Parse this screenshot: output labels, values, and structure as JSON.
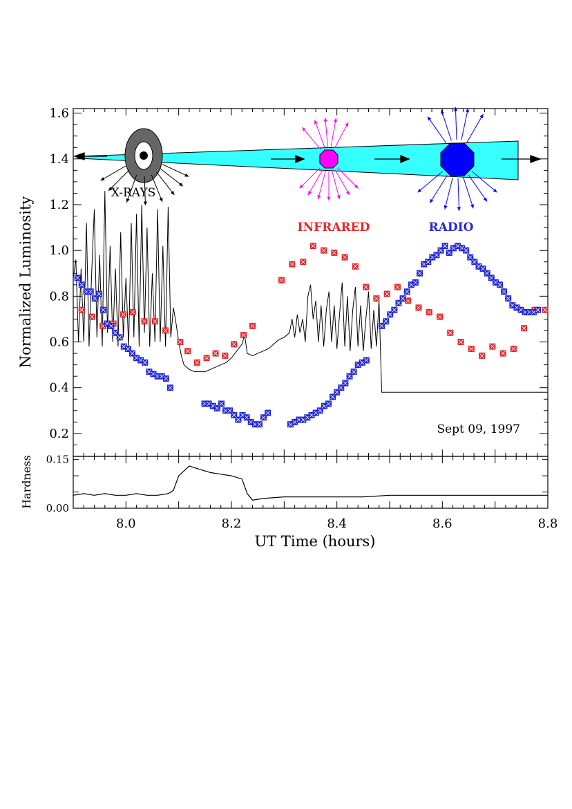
{
  "chart_data": [
    {
      "type": "scatter",
      "xlabel": "UT Time (hours)",
      "ylabel": "Normalized Luminosity",
      "xlim": [
        7.9,
        8.8
      ],
      "ylim": [
        0.1,
        1.62
      ],
      "x_ticks": [
        "8.0",
        "8.2",
        "8.4",
        "8.6",
        "8.8"
      ],
      "y_ticks": [
        "0.2",
        "0.4",
        "0.6",
        "0.8",
        "1.0",
        "1.2",
        "1.4",
        "1.6"
      ],
      "annotation_date": "Sept 09, 1997",
      "labels": {
        "xrays": "X-RAYS",
        "infrared": "INFRARED",
        "radio": "RADIO"
      },
      "colors": {
        "xray": "#000000",
        "infrared": "#e8262a",
        "radio": "#2326d9",
        "jet": "#36ffff",
        "ir_blob": "#ff00ff",
        "radio_blob": "#0000ff",
        "disk": "#666666"
      },
      "series": [
        {
          "marker": "line",
          "points": [
            [
              7.9,
              0.88
            ],
            [
              7.905,
              0.96
            ],
            [
              7.91,
              0.6
            ],
            [
              7.915,
              0.92
            ],
            [
              7.92,
              0.6
            ],
            [
              7.925,
              1.12
            ],
            [
              7.93,
              0.58
            ],
            [
              7.935,
              0.9
            ],
            [
              7.94,
              1.18
            ],
            [
              7.945,
              0.62
            ],
            [
              7.95,
              0.98
            ],
            [
              7.955,
              0.58
            ],
            [
              7.96,
              1.26
            ],
            [
              7.965,
              0.64
            ],
            [
              7.97,
              1.02
            ],
            [
              7.975,
              0.6
            ],
            [
              7.98,
              0.92
            ],
            [
              7.985,
              0.58
            ],
            [
              7.99,
              1.08
            ],
            [
              7.995,
              0.62
            ],
            [
              8.0,
              0.88
            ],
            [
              8.005,
              0.58
            ],
            [
              8.01,
              1.12
            ],
            [
              8.015,
              0.62
            ],
            [
              8.02,
              1.16
            ],
            [
              8.025,
              0.58
            ],
            [
              8.03,
              1.2
            ],
            [
              8.035,
              0.64
            ],
            [
              8.04,
              1.1
            ],
            [
              8.045,
              0.58
            ],
            [
              8.05,
              0.9
            ],
            [
              8.055,
              0.6
            ],
            [
              8.06,
              1.18
            ],
            [
              8.065,
              0.6
            ],
            [
              8.07,
              1.02
            ],
            [
              8.075,
              0.58
            ],
            [
              8.08,
              1.19
            ],
            [
              8.085,
              0.62
            ],
            [
              8.09,
              0.75
            ],
            [
              8.095,
              0.68
            ],
            [
              8.1,
              0.6
            ],
            [
              8.105,
              0.54
            ],
            [
              8.11,
              0.5
            ],
            [
              8.12,
              0.48
            ],
            [
              8.13,
              0.47
            ],
            [
              8.14,
              0.47
            ],
            [
              8.15,
              0.47
            ],
            [
              8.16,
              0.48
            ],
            [
              8.17,
              0.49
            ],
            [
              8.18,
              0.5
            ],
            [
              8.19,
              0.51
            ],
            [
              8.2,
              0.53
            ],
            [
              8.21,
              0.56
            ],
            [
              8.22,
              0.59
            ],
            [
              8.225,
              0.63
            ],
            [
              8.23,
              0.55
            ],
            [
              8.24,
              0.54
            ],
            [
              8.25,
              0.55
            ],
            [
              8.26,
              0.56
            ],
            [
              8.27,
              0.57
            ],
            [
              8.28,
              0.59
            ],
            [
              8.29,
              0.61
            ],
            [
              8.3,
              0.62
            ],
            [
              8.31,
              0.64
            ],
            [
              8.315,
              0.7
            ],
            [
              8.32,
              0.62
            ],
            [
              8.325,
              0.72
            ],
            [
              8.33,
              0.64
            ],
            [
              8.335,
              0.7
            ],
            [
              8.34,
              0.6
            ],
            [
              8.345,
              0.8
            ],
            [
              8.35,
              0.85
            ],
            [
              8.355,
              0.7
            ],
            [
              8.36,
              0.78
            ],
            [
              8.365,
              0.6
            ],
            [
              8.37,
              0.76
            ],
            [
              8.375,
              0.58
            ],
            [
              8.38,
              0.74
            ],
            [
              8.385,
              0.82
            ],
            [
              8.39,
              0.6
            ],
            [
              8.395,
              0.76
            ],
            [
              8.4,
              0.57
            ],
            [
              8.405,
              0.72
            ],
            [
              8.41,
              0.86
            ],
            [
              8.415,
              0.58
            ],
            [
              8.42,
              0.8
            ],
            [
              8.425,
              0.56
            ],
            [
              8.43,
              0.74
            ],
            [
              8.435,
              0.84
            ],
            [
              8.44,
              0.58
            ],
            [
              8.445,
              0.76
            ],
            [
              8.45,
              0.56
            ],
            [
              8.455,
              0.7
            ],
            [
              8.46,
              0.82
            ],
            [
              8.465,
              0.57
            ],
            [
              8.47,
              0.74
            ],
            [
              8.475,
              0.58
            ],
            [
              8.48,
              0.78
            ],
            [
              8.485,
              0.38
            ],
            [
              8.8,
              0.38
            ]
          ]
        },
        {
          "name": "INFRARED",
          "marker": "square",
          "points": [
            [
              7.916,
              0.74
            ],
            [
              7.936,
              0.71
            ],
            [
              7.956,
              0.67
            ],
            [
              7.976,
              0.68
            ],
            [
              7.995,
              0.72
            ],
            [
              8.013,
              0.73
            ],
            [
              8.035,
              0.69
            ],
            [
              8.055,
              0.69
            ],
            [
              8.075,
              0.65
            ],
            [
              8.103,
              0.6
            ],
            [
              8.117,
              0.56
            ],
            [
              8.135,
              0.51
            ],
            [
              8.153,
              0.53
            ],
            [
              8.17,
              0.55
            ],
            [
              8.188,
              0.54
            ],
            [
              8.205,
              0.59
            ],
            [
              8.223,
              0.63
            ],
            [
              8.24,
              0.67
            ],
            [
              8.295,
              0.87
            ],
            [
              8.315,
              0.94
            ],
            [
              8.336,
              0.95
            ],
            [
              8.355,
              1.02
            ],
            [
              8.375,
              1.0
            ],
            [
              8.395,
              0.99
            ],
            [
              8.415,
              0.97
            ],
            [
              8.435,
              0.93
            ],
            [
              8.455,
              0.84
            ],
            [
              8.475,
              0.79
            ],
            [
              8.495,
              0.81
            ],
            [
              8.515,
              0.84
            ],
            [
              8.535,
              0.78
            ],
            [
              8.555,
              0.75
            ],
            [
              8.575,
              0.73
            ],
            [
              8.595,
              0.71
            ],
            [
              8.615,
              0.64
            ],
            [
              8.635,
              0.6
            ],
            [
              8.655,
              0.57
            ],
            [
              8.675,
              0.54
            ],
            [
              8.695,
              0.58
            ],
            [
              8.715,
              0.55
            ],
            [
              8.735,
              0.57
            ],
            [
              8.755,
              0.66
            ],
            [
              8.775,
              0.74
            ],
            [
              8.795,
              0.74
            ]
          ]
        },
        {
          "name": "RADIO",
          "marker": "square",
          "points": [
            [
              7.908,
              0.88
            ],
            [
              7.916,
              0.85
            ],
            [
              7.925,
              0.82
            ],
            [
              7.933,
              0.82
            ],
            [
              7.941,
              0.79
            ],
            [
              7.949,
              0.81
            ],
            [
              7.957,
              0.74
            ],
            [
              7.964,
              0.68
            ],
            [
              7.972,
              0.67
            ],
            [
              7.98,
              0.64
            ],
            [
              7.988,
              0.62
            ],
            [
              7.996,
              0.58
            ],
            [
              8.004,
              0.57
            ],
            [
              8.012,
              0.55
            ],
            [
              8.02,
              0.53
            ],
            [
              8.028,
              0.52
            ],
            [
              8.036,
              0.51
            ],
            [
              8.044,
              0.47
            ],
            [
              8.052,
              0.46
            ],
            [
              8.06,
              0.45
            ],
            [
              8.068,
              0.45
            ],
            [
              8.076,
              0.44
            ],
            [
              8.084,
              0.4
            ],
            [
              8.149,
              0.33
            ],
            [
              8.157,
              0.33
            ],
            [
              8.165,
              0.32
            ],
            [
              8.173,
              0.31
            ],
            [
              8.181,
              0.33
            ],
            [
              8.189,
              0.3
            ],
            [
              8.197,
              0.3
            ],
            [
              8.205,
              0.28
            ],
            [
              8.213,
              0.26
            ],
            [
              8.221,
              0.28
            ],
            [
              8.229,
              0.27
            ],
            [
              8.237,
              0.25
            ],
            [
              8.245,
              0.24
            ],
            [
              8.253,
              0.24
            ],
            [
              8.261,
              0.27
            ],
            [
              8.269,
              0.29
            ],
            [
              8.312,
              0.24
            ],
            [
              8.32,
              0.25
            ],
            [
              8.328,
              0.26
            ],
            [
              8.336,
              0.26
            ],
            [
              8.344,
              0.27
            ],
            [
              8.352,
              0.28
            ],
            [
              8.36,
              0.29
            ],
            [
              8.368,
              0.3
            ],
            [
              8.376,
              0.32
            ],
            [
              8.384,
              0.33
            ],
            [
              8.392,
              0.36
            ],
            [
              8.4,
              0.38
            ],
            [
              8.408,
              0.4
            ],
            [
              8.416,
              0.42
            ],
            [
              8.424,
              0.45
            ],
            [
              8.432,
              0.47
            ],
            [
              8.44,
              0.5
            ],
            [
              8.448,
              0.51
            ],
            [
              8.456,
              0.52
            ],
            [
              8.485,
              0.67
            ],
            [
              8.493,
              0.69
            ],
            [
              8.501,
              0.72
            ],
            [
              8.509,
              0.74
            ],
            [
              8.517,
              0.77
            ],
            [
              8.525,
              0.79
            ],
            [
              8.533,
              0.82
            ],
            [
              8.541,
              0.85
            ],
            [
              8.549,
              0.86
            ],
            [
              8.557,
              0.9
            ],
            [
              8.565,
              0.94
            ],
            [
              8.573,
              0.95
            ],
            [
              8.581,
              0.97
            ],
            [
              8.589,
              0.98
            ],
            [
              8.597,
              1.0
            ],
            [
              8.605,
              1.02
            ],
            [
              8.613,
              0.99
            ],
            [
              8.621,
              1.01
            ],
            [
              8.629,
              1.02
            ],
            [
              8.637,
              1.01
            ],
            [
              8.645,
              1.0
            ],
            [
              8.653,
              0.97
            ],
            [
              8.661,
              0.95
            ],
            [
              8.669,
              0.93
            ],
            [
              8.677,
              0.92
            ],
            [
              8.685,
              0.9
            ],
            [
              8.693,
              0.88
            ],
            [
              8.701,
              0.86
            ],
            [
              8.709,
              0.85
            ],
            [
              8.717,
              0.82
            ],
            [
              8.725,
              0.79
            ],
            [
              8.733,
              0.76
            ],
            [
              8.741,
              0.75
            ],
            [
              8.749,
              0.74
            ],
            [
              8.757,
              0.73
            ],
            [
              8.765,
              0.73
            ],
            [
              8.773,
              0.73
            ],
            [
              8.781,
              0.74
            ]
          ]
        }
      ]
    },
    {
      "type": "line",
      "ylabel": "Hardness",
      "xlim": [
        7.9,
        8.8
      ],
      "ylim": [
        0.0,
        0.16
      ],
      "y_ticks": [
        "0.00",
        "0.15"
      ],
      "series": [
        {
          "points": [
            [
              7.9,
              0.04
            ],
            [
              7.92,
              0.045
            ],
            [
              7.94,
              0.04
            ],
            [
              7.96,
              0.045
            ],
            [
              7.98,
              0.04
            ],
            [
              8.0,
              0.04
            ],
            [
              8.02,
              0.045
            ],
            [
              8.04,
              0.04
            ],
            [
              8.06,
              0.04
            ],
            [
              8.08,
              0.045
            ],
            [
              8.09,
              0.055
            ],
            [
              8.1,
              0.1
            ],
            [
              8.12,
              0.13
            ],
            [
              8.14,
              0.12
            ],
            [
              8.16,
              0.11
            ],
            [
              8.18,
              0.105
            ],
            [
              8.2,
              0.1
            ],
            [
              8.22,
              0.09
            ],
            [
              8.23,
              0.045
            ],
            [
              8.24,
              0.025
            ],
            [
              8.26,
              0.03
            ],
            [
              8.3,
              0.035
            ],
            [
              8.35,
              0.035
            ],
            [
              8.4,
              0.035
            ],
            [
              8.45,
              0.035
            ],
            [
              8.5,
              0.04
            ],
            [
              8.8,
              0.04
            ]
          ]
        }
      ]
    }
  ]
}
